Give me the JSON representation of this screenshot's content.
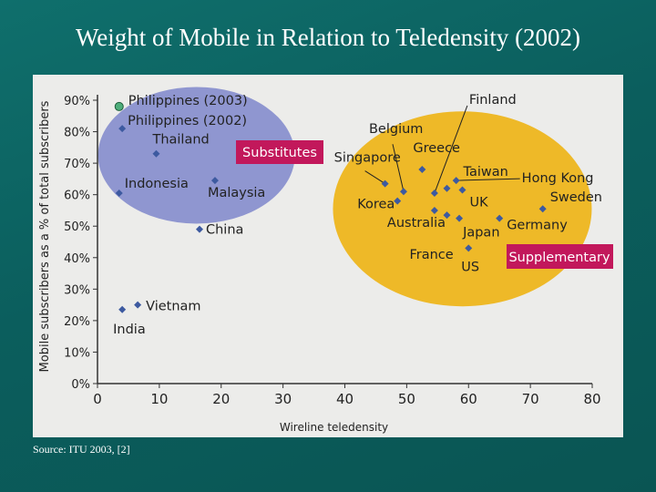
{
  "slide": {
    "title": "Weight of Mobile in Relation to Teledensity (2002)",
    "source": "Source: ITU 2003, [2]"
  },
  "colors": {
    "background": "#0b5e5d",
    "panel": "#ececea",
    "substitutes_ellipse": "#8f96d0",
    "supplementary_ellipse": "#eeb928",
    "label_box": "#c2185b",
    "point": "#3d5aa0",
    "highlight_point": "#4fae7b"
  },
  "chart_data": {
    "type": "scatter",
    "title": "",
    "xlabel": "Wireline teledensity",
    "ylabel": "Mobile subscribers as a % of total subscribers",
    "xlim": [
      0,
      80
    ],
    "ylim": [
      0,
      90
    ],
    "x_ticks": [
      "0",
      "10",
      "20",
      "30",
      "40",
      "50",
      "60",
      "70",
      "80"
    ],
    "y_ticks": [
      "0%",
      "10%",
      "20%",
      "30%",
      "40%",
      "50%",
      "60%",
      "70%",
      "80%",
      "90%"
    ],
    "grid": false,
    "points": [
      {
        "label": "Philippines (2003)",
        "x": 3.5,
        "y": 88,
        "highlight": true
      },
      {
        "label": "Philippines (2002)",
        "x": 4,
        "y": 81
      },
      {
        "label": "Thailand",
        "x": 9.5,
        "y": 73
      },
      {
        "label": "Indonesia",
        "x": 3.5,
        "y": 60.5
      },
      {
        "label": "Malaysia",
        "x": 19,
        "y": 64.5
      },
      {
        "label": "China",
        "x": 16.5,
        "y": 49
      },
      {
        "label": "Vietnam",
        "x": 6.5,
        "y": 25
      },
      {
        "label": "India",
        "x": 4,
        "y": 23.5
      },
      {
        "label": "Singapore",
        "x": 46.5,
        "y": 63.5
      },
      {
        "label": "Belgium",
        "x": 49.5,
        "y": 61
      },
      {
        "label": "Korea",
        "x": 48.5,
        "y": 58
      },
      {
        "label": "Greece",
        "x": 52.5,
        "y": 68
      },
      {
        "label": "Finland",
        "x": 54.5,
        "y": 60.5
      },
      {
        "label": "Taiwan",
        "x": 56.5,
        "y": 62
      },
      {
        "label": "Hong Kong",
        "x": 58,
        "y": 64.5
      },
      {
        "label": "UK",
        "x": 59,
        "y": 61.5
      },
      {
        "label": "Australia",
        "x": 54.5,
        "y": 55
      },
      {
        "label": "France",
        "x": 56.5,
        "y": 53.5
      },
      {
        "label": "Japan",
        "x": 58.5,
        "y": 52.5
      },
      {
        "label": "Germany",
        "x": 65,
        "y": 52.5
      },
      {
        "label": "Sweden",
        "x": 72,
        "y": 55.5
      },
      {
        "label": "US",
        "x": 60,
        "y": 43
      }
    ],
    "annotations": [
      {
        "text": "Substitutes",
        "group": "low teledensity cluster"
      },
      {
        "text": "Supplementary",
        "group": "high teledensity cluster"
      }
    ]
  }
}
